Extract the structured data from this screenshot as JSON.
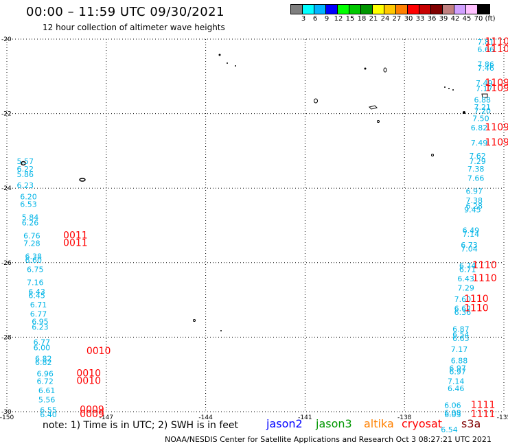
{
  "header": {
    "title": "00:00 – 11:59 UTC 09/30/2021",
    "subtitle": "12 hour collection of altimeter wave heights"
  },
  "colorbar": {
    "colors": [
      "#7f7f7f",
      "#00ffff",
      "#00b4ff",
      "#0000ff",
      "#00ff00",
      "#00c800",
      "#009600",
      "#ffff00",
      "#ffc800",
      "#ff8000",
      "#ff0000",
      "#c80000",
      "#800000",
      "#c08080",
      "#d0a0ff",
      "#ffc0ff",
      "#000000"
    ],
    "labels": [
      "3",
      "6",
      "9",
      "12",
      "15",
      "18",
      "21",
      "24",
      "27",
      "30",
      "33",
      "36",
      "39",
      "42",
      "45",
      "70",
      "(ft)"
    ]
  },
  "axes": {
    "lon_ticks": [
      "-150",
      "-147",
      "-144",
      "-141",
      "-138",
      "-135"
    ],
    "lat_ticks": [
      "-20",
      "-22",
      "-24",
      "-26",
      "-28",
      "-30"
    ],
    "lon_range": [
      -150,
      -135
    ],
    "lat_range": [
      -30,
      -20
    ]
  },
  "footer": {
    "note": "note:  1) Time is in UTC;  2) SWH is in feet",
    "satellites": [
      {
        "name": "jason2",
        "color": "#0000ff"
      },
      {
        "name": "jason3",
        "color": "#009600"
      },
      {
        "name": "altika",
        "color": "#ff8000"
      },
      {
        "name": "cryosat",
        "color": "#ff0000"
      },
      {
        "name": "s3a",
        "color": "#800000"
      }
    ],
    "credit": "NOAA/NESDIS Center for Satellite Applications and Research    Oct  3 08:27:21 UTC 2021"
  },
  "wave_labels": [
    {
      "text": "5.57",
      "lon": -149.7,
      "lat": -23.35
    },
    {
      "text": "6.22",
      "lon": -149.7,
      "lat": -23.55
    },
    {
      "text": "5.86",
      "lon": -149.7,
      "lat": -23.7
    },
    {
      "text": "6.23",
      "lon": -149.7,
      "lat": -24.0
    },
    {
      "text": "6.20",
      "lon": -149.6,
      "lat": -24.3
    },
    {
      "text": "6.53",
      "lon": -149.6,
      "lat": -24.5
    },
    {
      "text": "5.84",
      "lon": -149.55,
      "lat": -24.85
    },
    {
      "text": "6.26",
      "lon": -149.55,
      "lat": -25.0
    },
    {
      "text": "6.76",
      "lon": -149.5,
      "lat": -25.35
    },
    {
      "text": "7.28",
      "lon": -149.5,
      "lat": -25.55
    },
    {
      "text": "6.38",
      "lon": -149.45,
      "lat": -25.9
    },
    {
      "text": "6.60",
      "lon": -149.45,
      "lat": -26.0
    },
    {
      "text": "6.75",
      "lon": -149.4,
      "lat": -26.25
    },
    {
      "text": "7.16",
      "lon": -149.4,
      "lat": -26.6
    },
    {
      "text": "6.43",
      "lon": -149.35,
      "lat": -26.85
    },
    {
      "text": "6.45",
      "lon": -149.35,
      "lat": -26.95
    },
    {
      "text": "6.71",
      "lon": -149.3,
      "lat": -27.2
    },
    {
      "text": "6.77",
      "lon": -149.3,
      "lat": -27.45
    },
    {
      "text": "6.95",
      "lon": -149.25,
      "lat": -27.65
    },
    {
      "text": "6.23",
      "lon": -149.25,
      "lat": -27.8
    },
    {
      "text": "6.77",
      "lon": -149.2,
      "lat": -28.2
    },
    {
      "text": "6.00",
      "lon": -149.2,
      "lat": -28.35
    },
    {
      "text": "6.82",
      "lon": -149.15,
      "lat": -28.65
    },
    {
      "text": "6.82",
      "lon": -149.15,
      "lat": -28.75
    },
    {
      "text": "6.96",
      "lon": -149.1,
      "lat": -29.05
    },
    {
      "text": "6.72",
      "lon": -149.1,
      "lat": -29.25
    },
    {
      "text": "6.61",
      "lon": -149.05,
      "lat": -29.5
    },
    {
      "text": "5.56",
      "lon": -149.05,
      "lat": -29.75
    },
    {
      "text": "6.55",
      "lon": -149.0,
      "lat": -30.03
    },
    {
      "text": "6.40",
      "lon": -149.0,
      "lat": -30.15
    },
    {
      "text": "7.81",
      "lon": -135.8,
      "lat": -20.15
    },
    {
      "text": "6.66",
      "lon": -135.8,
      "lat": -20.35
    },
    {
      "text": "7.86",
      "lon": -135.8,
      "lat": -20.75
    },
    {
      "text": "7.46",
      "lon": -135.8,
      "lat": -20.85
    },
    {
      "text": "7.49",
      "lon": -135.85,
      "lat": -21.25
    },
    {
      "text": "7.17",
      "lon": -135.85,
      "lat": -21.4
    },
    {
      "text": "6.88",
      "lon": -135.9,
      "lat": -21.7
    },
    {
      "text": "7.21",
      "lon": -135.9,
      "lat": -21.9
    },
    {
      "text": "7.20",
      "lon": -135.9,
      "lat": -22.0
    },
    {
      "text": "7.50",
      "lon": -135.95,
      "lat": -22.2
    },
    {
      "text": "6.82",
      "lon": -136.0,
      "lat": -22.45
    },
    {
      "text": "7.49",
      "lon": -136.0,
      "lat": -22.85
    },
    {
      "text": "7.62",
      "lon": -136.05,
      "lat": -23.2
    },
    {
      "text": "7.29",
      "lon": -136.05,
      "lat": -23.35
    },
    {
      "text": "7.38",
      "lon": -136.1,
      "lat": -23.55
    },
    {
      "text": "7.66",
      "lon": -136.1,
      "lat": -23.8
    },
    {
      "text": "6.97",
      "lon": -136.15,
      "lat": -24.15
    },
    {
      "text": "7.38",
      "lon": -136.15,
      "lat": -24.4
    },
    {
      "text": "6.28",
      "lon": -136.15,
      "lat": -24.55
    },
    {
      "text": "9.45",
      "lon": -136.2,
      "lat": -24.65
    },
    {
      "text": "6.49",
      "lon": -136.25,
      "lat": -25.2
    },
    {
      "text": "7.14",
      "lon": -136.25,
      "lat": -25.3
    },
    {
      "text": "6.73",
      "lon": -136.3,
      "lat": -25.6
    },
    {
      "text": "7.04",
      "lon": -136.3,
      "lat": -25.7
    },
    {
      "text": "6.74",
      "lon": -136.35,
      "lat": -26.15
    },
    {
      "text": "6.71",
      "lon": -136.35,
      "lat": -26.25
    },
    {
      "text": "6.43",
      "lon": -136.4,
      "lat": -26.5
    },
    {
      "text": "7.29",
      "lon": -136.4,
      "lat": -26.75
    },
    {
      "text": "7.60",
      "lon": -136.5,
      "lat": -27.05
    },
    {
      "text": "6.62",
      "lon": -136.5,
      "lat": -27.3
    },
    {
      "text": "6.36",
      "lon": -136.5,
      "lat": -27.4
    },
    {
      "text": "6.87",
      "lon": -136.55,
      "lat": -27.85
    },
    {
      "text": "6.54",
      "lon": -136.55,
      "lat": -28.0
    },
    {
      "text": "6.65",
      "lon": -136.55,
      "lat": -28.1
    },
    {
      "text": "7.17",
      "lon": -136.6,
      "lat": -28.4
    },
    {
      "text": "6.88",
      "lon": -136.6,
      "lat": -28.7
    },
    {
      "text": "6.97",
      "lon": -136.65,
      "lat": -28.9
    },
    {
      "text": "6.97",
      "lon": -136.65,
      "lat": -29.0
    },
    {
      "text": "7.14",
      "lon": -136.7,
      "lat": -29.25
    },
    {
      "text": "6.46",
      "lon": -136.7,
      "lat": -29.45
    },
    {
      "text": "6.06",
      "lon": -136.8,
      "lat": -29.9
    },
    {
      "text": "6.08",
      "lon": -136.8,
      "lat": -30.1
    },
    {
      "text": "6.03",
      "lon": -136.8,
      "lat": -30.15
    },
    {
      "text": "6.54",
      "lon": -136.9,
      "lat": -30.55
    }
  ],
  "time_labels": [
    {
      "text": "0011",
      "lon": -148.3,
      "lat": -25.35
    },
    {
      "text": "0011",
      "lon": -148.3,
      "lat": -25.55
    },
    {
      "text": "0010",
      "lon": -147.6,
      "lat": -28.45
    },
    {
      "text": "0010",
      "lon": -147.9,
      "lat": -29.05
    },
    {
      "text": "0010",
      "lon": -147.9,
      "lat": -29.25
    },
    {
      "text": "0009",
      "lon": -147.8,
      "lat": -30.03
    },
    {
      "text": "0009",
      "lon": -147.8,
      "lat": -30.15
    },
    {
      "text": "1110",
      "lon": -135.05,
      "lat": -20.15
    },
    {
      "text": "1110",
      "lon": -135.05,
      "lat": -20.35
    },
    {
      "text": "1109",
      "lon": -135.15,
      "lat": -21.25
    },
    {
      "text": "1109",
      "lon": -135.15,
      "lat": -21.4
    },
    {
      "text": "1109",
      "lon": -135.5,
      "lat": -22.45
    },
    {
      "text": "1109",
      "lon": -135.5,
      "lat": -22.85
    },
    {
      "text": "1110",
      "lon": -135.95,
      "lat": -26.15
    },
    {
      "text": "1110",
      "lon": -135.95,
      "lat": -26.5
    },
    {
      "text": "1110",
      "lon": -136.2,
      "lat": -27.05
    },
    {
      "text": "1110",
      "lon": -136.2,
      "lat": -27.3
    },
    {
      "text": "1111",
      "lon": -136.0,
      "lat": -29.9
    },
    {
      "text": "1111",
      "lon": -136.0,
      "lat": -30.15
    }
  ]
}
